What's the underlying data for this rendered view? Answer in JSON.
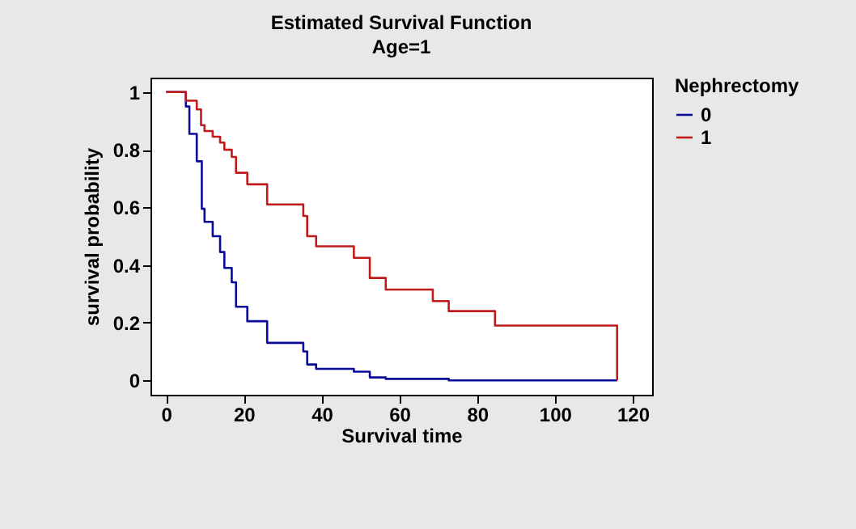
{
  "chart_data": {
    "type": "step",
    "title": "Estimated Survival Function",
    "subtitle": "Age=1",
    "xlabel": "Survival time",
    "ylabel": "survival probability",
    "legend_title": "Nephrectomy",
    "legend": "top right",
    "grid": false,
    "xlim": [
      -4,
      125
    ],
    "xticks": [
      0,
      20,
      40,
      60,
      80,
      100,
      120
    ],
    "ylim": [
      -0.05,
      1.05
    ],
    "yticks": [
      0,
      0.2,
      0.4,
      0.6,
      0.8,
      1
    ],
    "series": [
      {
        "name": "0",
        "color": "#0a0a9a",
        "x": [
          0,
          5.1,
          6,
          7.9,
          9.2,
          9.9,
          12,
          13.9,
          15,
          16.9,
          18,
          20.9,
          26,
          35.3,
          36.3,
          38.6,
          48.3,
          52.4,
          56.5,
          72.7,
          116
        ],
        "values": [
          1,
          0.95,
          0.855,
          0.76,
          0.595,
          0.55,
          0.5,
          0.445,
          0.39,
          0.34,
          0.255,
          0.205,
          0.13,
          0.1,
          0.055,
          0.04,
          0.03,
          0.01,
          0.005,
          0,
          0
        ]
      },
      {
        "name": "1",
        "color": "#c01a1a",
        "x": [
          0,
          5.1,
          7.9,
          9,
          9.9,
          12,
          13.9,
          15,
          16.9,
          18,
          20.9,
          26,
          35.3,
          36.3,
          38.6,
          48.3,
          52.4,
          56.5,
          68.6,
          72.7,
          84.6,
          116,
          116
        ],
        "values": [
          1,
          0.97,
          0.94,
          0.885,
          0.865,
          0.845,
          0.825,
          0.8,
          0.775,
          0.72,
          0.68,
          0.61,
          0.57,
          0.5,
          0.465,
          0.425,
          0.355,
          0.315,
          0.275,
          0.24,
          0.19,
          0.19,
          0
        ]
      }
    ]
  }
}
